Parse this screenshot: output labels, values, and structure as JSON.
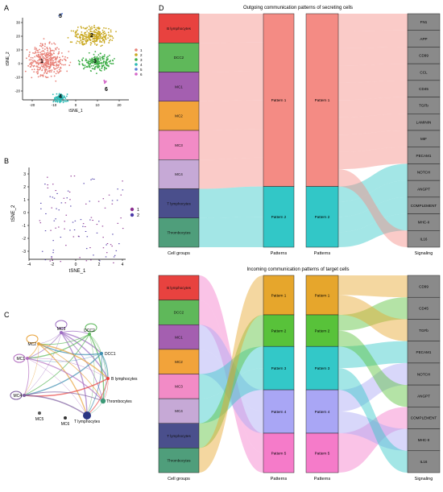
{
  "panels": {
    "A": {
      "label": "A",
      "xlabel": "tSNE_1",
      "ylabel": "tSNE_2",
      "x_ticks": [
        "-20",
        "-10",
        "0",
        "10",
        "20"
      ],
      "y_ticks": [
        "30",
        "20",
        "10",
        "0",
        "-10",
        "-20"
      ],
      "legend": [
        "1",
        "2",
        "3",
        "4",
        "5",
        "6"
      ],
      "cluster_labels": [
        "1",
        "2",
        "3",
        "4",
        "5",
        "6"
      ],
      "colors": [
        "#e8837a",
        "#c9a820",
        "#3fae49",
        "#2bb9b4",
        "#5c7fd6",
        "#d466c8"
      ]
    },
    "B": {
      "label": "B",
      "xlabel": "tSNE_1",
      "ylabel": "tSNE_2",
      "x_ticks": [
        "-4",
        "-2",
        "0",
        "2",
        "4"
      ],
      "y_ticks": [
        "3",
        "2",
        "1",
        "0",
        "-1",
        "-2",
        "-3"
      ],
      "legend": [
        "1",
        "2"
      ],
      "colors": [
        "#8a2e8f",
        "#4a3aa8"
      ]
    },
    "C": {
      "label": "C",
      "nodes": [
        "MC3",
        "DCC2",
        "DCC1",
        "MC2",
        "MC1",
        "B lymphocytes",
        "MC4",
        "Thrombocytes",
        "MC5",
        "MC6",
        "T lymphocytes"
      ]
    },
    "D": {
      "label": "D",
      "top_title": "Outgoing communication patterns of secreting cells",
      "bottom_title": "Incoming communication patterns of target cells",
      "axis_labels": {
        "cell_groups": "Cell groups",
        "patterns_left": "Patterns",
        "patterns_right": "Patterns",
        "signaling": "Signaling"
      },
      "cell_groups": [
        "B lymphocytes",
        "DCC2",
        "MC1",
        "MC2",
        "MC3",
        "MC4",
        "T lymphocytes",
        "Thrombocytes"
      ],
      "cell_colors": [
        "#e8423f",
        "#5fb85a",
        "#a45fb0",
        "#f2a33a",
        "#f28bc6",
        "#c6a9d6",
        "#4a4f8c",
        "#4f9e7b"
      ],
      "outgoing_patterns": [
        "Pattern 1",
        "Pattern 2"
      ],
      "outgoing_pattern_colors": [
        "#f48b84",
        "#32c7c7"
      ],
      "outgoing_signaling": [
        "FN1",
        "APP",
        "CD99",
        "CCL",
        "CD45",
        "TGFb",
        "LAMININ",
        "MIF",
        "PECAM1",
        "NOTCH",
        "ANGPT",
        "COMPLEMENT",
        "MHC-II",
        "IL16"
      ],
      "incoming_patterns": [
        "Pattern 1",
        "Pattern 2",
        "Pattern 3",
        "Pattern 4",
        "Pattern 5"
      ],
      "incoming_pattern_colors": [
        "#e6a62c",
        "#58c23a",
        "#33c8c8",
        "#a9a6f5",
        "#f57bc9"
      ],
      "incoming_signaling": [
        "CD99",
        "CD45",
        "TGFb",
        "PECAM1",
        "NOTCH",
        "ANGPT",
        "COMPLEMENT",
        "MHC-II",
        "IL16"
      ]
    }
  }
}
